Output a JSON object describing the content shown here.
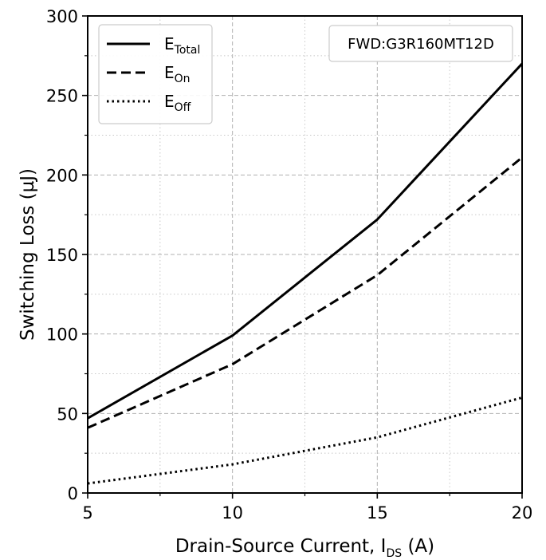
{
  "chart_data": {
    "type": "line",
    "xlabel": "Drain-Source Current, I",
    "xlabel_sub": "DS",
    "xlabel_unit": " (A)",
    "ylabel": "Switching Loss (µJ)",
    "xlim": [
      5,
      20
    ],
    "ylim": [
      0,
      300
    ],
    "x_ticks": [
      5,
      10,
      15,
      20
    ],
    "y_ticks": [
      0,
      50,
      100,
      150,
      200,
      250,
      300
    ],
    "x_minor_ticks": [
      7.5,
      12.5,
      17.5
    ],
    "y_minor_ticks": [
      25,
      75,
      125,
      175,
      225,
      275
    ],
    "grid": true,
    "legend_position": "top-left",
    "annotation": "FWD:G3R160MT12D",
    "series": [
      {
        "name": "E",
        "sub": "Total",
        "style": "solid",
        "x": [
          5,
          10,
          15,
          20
        ],
        "y": [
          47,
          99,
          172,
          270
        ]
      },
      {
        "name": "E",
        "sub": "On",
        "style": "dashed",
        "x": [
          5,
          10,
          15,
          20
        ],
        "y": [
          41,
          81,
          137,
          211
        ]
      },
      {
        "name": "E",
        "sub": "Off",
        "style": "dotted",
        "x": [
          5,
          10,
          15,
          20
        ],
        "y": [
          6,
          18,
          35,
          60
        ]
      }
    ]
  }
}
